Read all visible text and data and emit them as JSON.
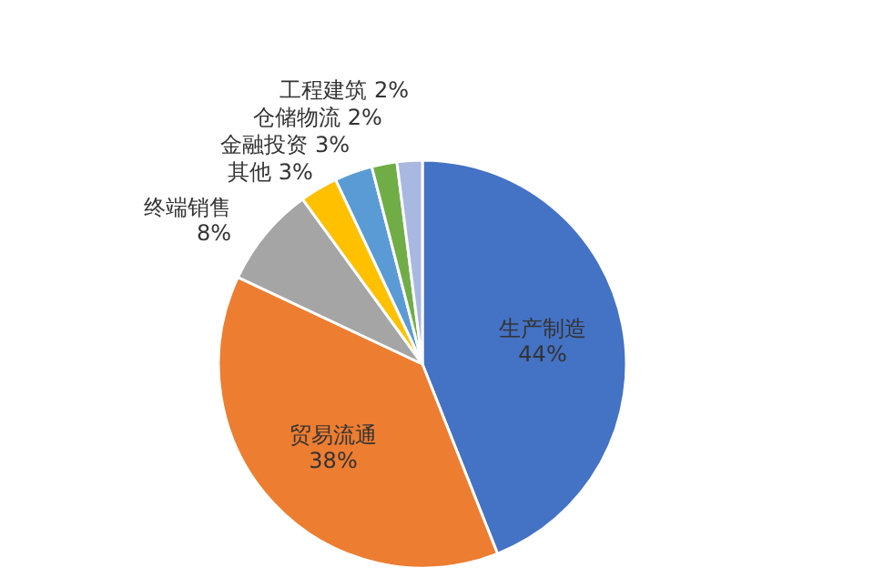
{
  "chart_data": {
    "type": "pie",
    "categories": [
      "生产制造",
      "贸易流通",
      "终端销售",
      "其他",
      "金融投资",
      "仓储物流",
      "工程建筑"
    ],
    "values": [
      44,
      38,
      8,
      3,
      3,
      2,
      2
    ],
    "value_labels": [
      "44%",
      "38%",
      "8%",
      "3%",
      "3%",
      "2%",
      "2%"
    ],
    "colors": [
      "#4472c4",
      "#ed7d31",
      "#a5a5a5",
      "#ffc000",
      "#5b9bd5",
      "#70ad47",
      "#a9b8e0"
    ]
  }
}
